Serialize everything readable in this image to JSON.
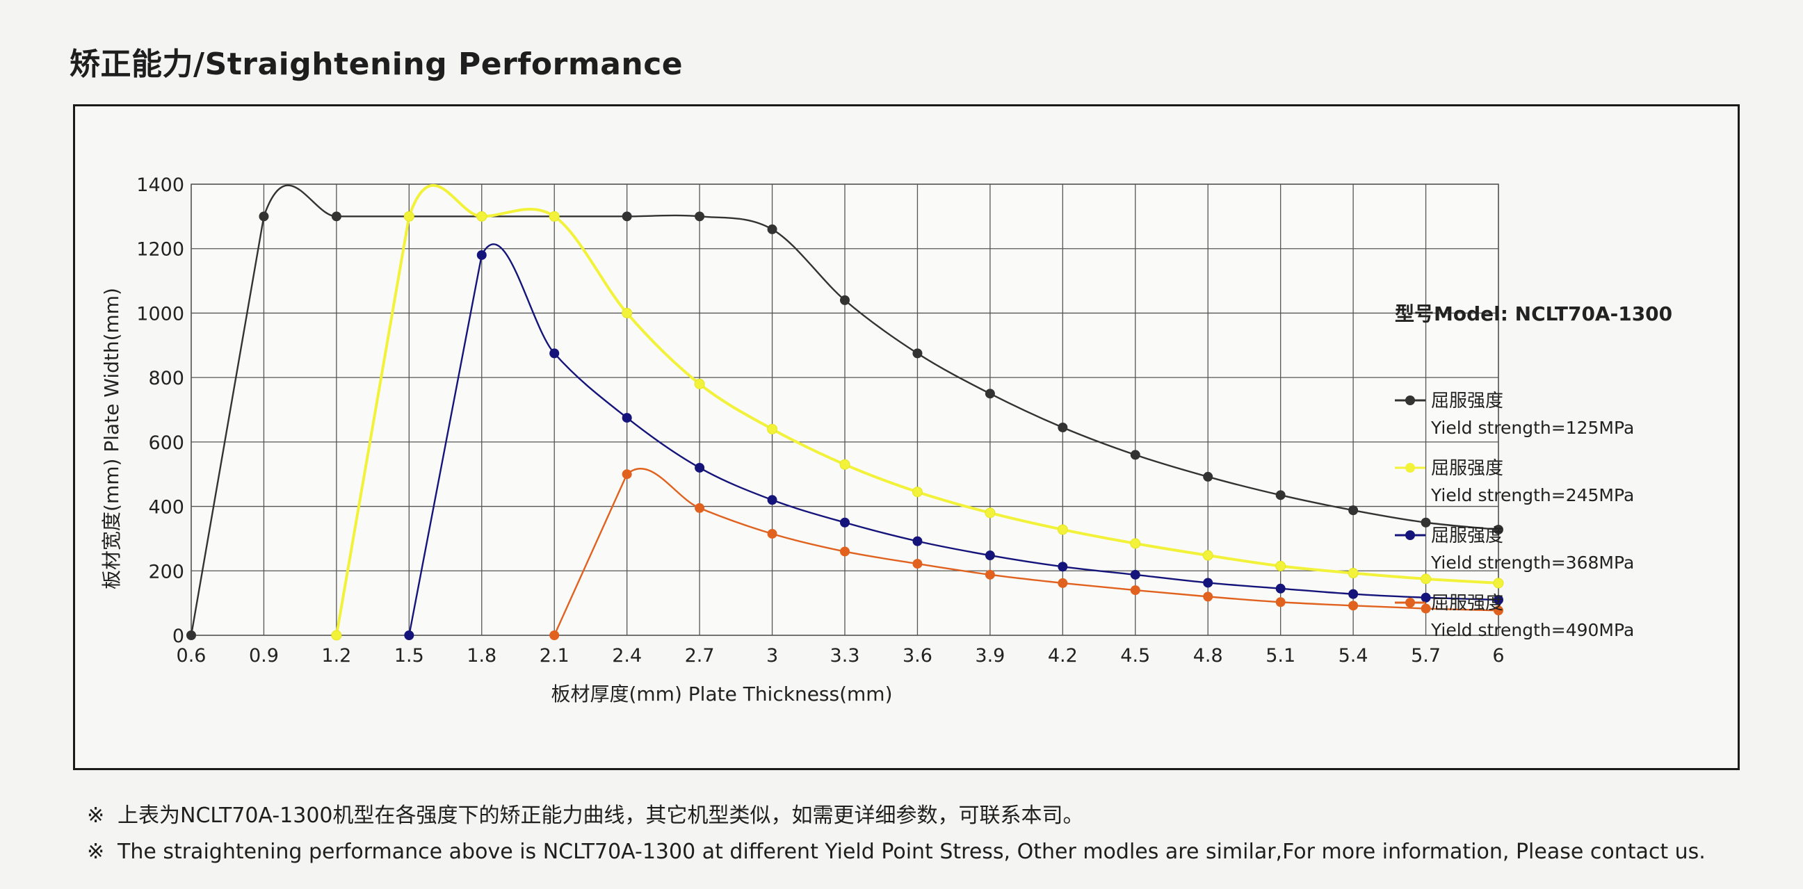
{
  "page_title": "矫正能力/Straightening Performance",
  "model_label": "型号Model: NCLT70A-1300",
  "notes": [
    "上表为NCLT70A-1300机型在各强度下的矫正能力曲线，其它机型类似，如需更详细参数，可联系本司。",
    "The straightening performance above is NCLT70A-1300 at different Yield Point Stress, Other modles are similar,For more information, Please contact us."
  ],
  "note_mark": "※",
  "chart_data": {
    "type": "line",
    "xlabel": "板材厚度(mm) Plate Thickness(mm)",
    "ylabel": "板材宽度(mm)  Plate Width(mm)",
    "x_ticks": [
      "0.6",
      "0.9",
      "1.2",
      "1.5",
      "1.8",
      "2.1",
      "2.4",
      "2.7",
      "3",
      "3.3",
      "3.6",
      "3.9",
      "4.2",
      "4.5",
      "4.8",
      "5.1",
      "5.4",
      "5.7",
      "6"
    ],
    "y_ticks": [
      "0",
      "200",
      "400",
      "600",
      "800",
      "1000",
      "1200",
      "1400"
    ],
    "xlim": [
      0.6,
      6
    ],
    "ylim": [
      0,
      1400
    ],
    "grid": true,
    "legend_position": "right",
    "series": [
      {
        "name": "屈服强度",
        "subtitle": "Yield strength=125MPa",
        "color": "#333333",
        "x": [
          0.6,
          0.9,
          1.2,
          1.5,
          1.8,
          2.1,
          2.4,
          2.7,
          3.0,
          3.3,
          3.6,
          3.9,
          4.2,
          4.5,
          4.8,
          5.1,
          5.4,
          5.7,
          6.0
        ],
        "y": [
          0,
          1300,
          1300,
          1300,
          1300,
          1300,
          1300,
          1300,
          1260,
          1040,
          875,
          750,
          645,
          560,
          492,
          435,
          388,
          350,
          328
        ]
      },
      {
        "name": "屈服强度",
        "subtitle": "Yield strength=245MPa",
        "color": "#f2f23a",
        "x": [
          1.2,
          1.5,
          1.8,
          2.1,
          2.4,
          2.7,
          3.0,
          3.3,
          3.6,
          3.9,
          4.2,
          4.5,
          4.8,
          5.1,
          5.4,
          5.7,
          6.0
        ],
        "y": [
          0,
          1300,
          1300,
          1300,
          1000,
          780,
          640,
          530,
          445,
          380,
          328,
          285,
          248,
          215,
          193,
          175,
          162
        ]
      },
      {
        "name": "屈服强度",
        "subtitle": "Yield strength=368MPa",
        "color": "#14147a",
        "x": [
          1.5,
          1.8,
          2.1,
          2.4,
          2.7,
          3.0,
          3.3,
          3.6,
          3.9,
          4.2,
          4.5,
          4.8,
          5.1,
          5.4,
          5.7,
          6.0
        ],
        "y": [
          0,
          1180,
          875,
          675,
          520,
          420,
          350,
          292,
          248,
          213,
          188,
          163,
          145,
          128,
          117,
          110
        ]
      },
      {
        "name": "屈服强度",
        "subtitle": "Yield strength=490MPa",
        "color": "#e0621e",
        "x": [
          2.1,
          2.4,
          2.7,
          3.0,
          3.3,
          3.6,
          3.9,
          4.2,
          4.5,
          4.8,
          5.1,
          5.4,
          5.7,
          6.0
        ],
        "y": [
          0,
          500,
          395,
          315,
          260,
          222,
          188,
          162,
          140,
          120,
          103,
          92,
          83,
          77
        ]
      }
    ]
  }
}
